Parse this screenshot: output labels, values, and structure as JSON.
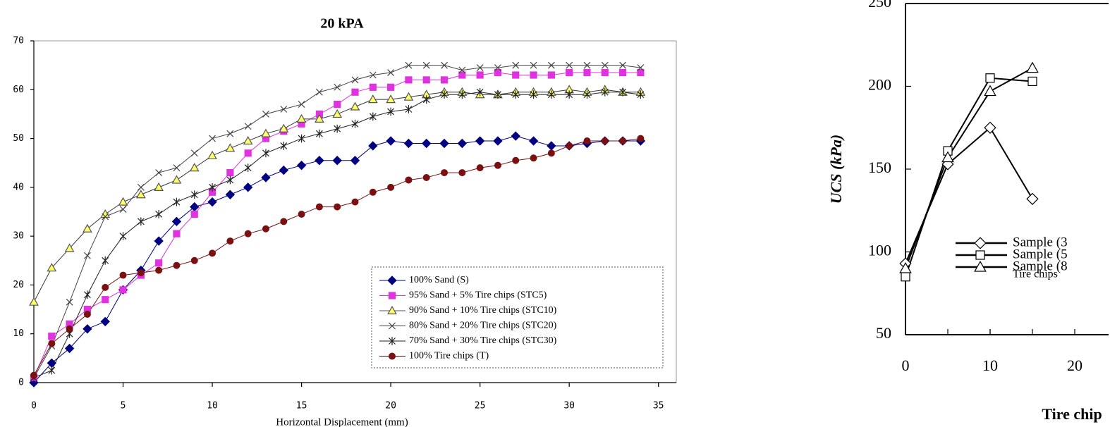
{
  "chart_data": [
    {
      "type": "line",
      "title": "20 kPA",
      "x_label": "Horizontal Displacement (mm)",
      "x": [
        0,
        1,
        2,
        3,
        4,
        5,
        6,
        7,
        8,
        9,
        10,
        11,
        12,
        13,
        14,
        15,
        16,
        17,
        18,
        19,
        20,
        21,
        22,
        23,
        24,
        25,
        26,
        27,
        28,
        29,
        30,
        31,
        32,
        33,
        34
      ],
      "xlim": [
        0,
        36
      ],
      "xticks": [
        0,
        5,
        10,
        15,
        20,
        25,
        30,
        35
      ],
      "ylim": [
        0,
        70
      ],
      "yticks": [
        0,
        10,
        20,
        30,
        40,
        50,
        60,
        70
      ],
      "legend": "lower-right",
      "series": [
        {
          "name": "100% Sand (S)",
          "color": "#000080",
          "marker": "diamond",
          "values": [
            0,
            4,
            7,
            11,
            12.5,
            19,
            23,
            29,
            33,
            36,
            37,
            38.5,
            40,
            42,
            43.5,
            44.5,
            45.5,
            45.5,
            45.5,
            48.5,
            49.5,
            49,
            49,
            49,
            49,
            49.5,
            49.5,
            50.5,
            49.5,
            48.5,
            48.5,
            49,
            49.5,
            49.5,
            49.5
          ]
        },
        {
          "name": "95% Sand + 5% Tire chips  (STC5)",
          "color": "#e033e0",
          "marker": "square",
          "values": [
            1,
            9.5,
            12,
            15,
            17,
            19,
            22,
            24.5,
            30.5,
            34.5,
            39,
            43,
            47,
            50,
            51.5,
            53,
            55,
            57,
            59.5,
            60.5,
            60.5,
            62,
            62,
            62,
            63,
            63,
            63.5,
            63,
            63,
            63,
            63.5,
            63.5,
            63.5,
            63.5,
            63.5
          ]
        },
        {
          "name": "90% Sand + 10% Tire chips  (STC10)",
          "color": "#ffff66",
          "marker": "triangle",
          "values": [
            16.5,
            23.5,
            27.5,
            31.5,
            34.5,
            37,
            38.5,
            40,
            41.5,
            44,
            46.5,
            48,
            49.5,
            51,
            52,
            54,
            54,
            55,
            56.5,
            58,
            58,
            58.5,
            59,
            59.5,
            59.5,
            59,
            59,
            59.5,
            59.5,
            59.5,
            60,
            59.5,
            60,
            59.5,
            59.5
          ]
        },
        {
          "name": "80% Sand + 20% Tire chips  (STC20)",
          "color": "#444444",
          "marker": "x",
          "values": [
            1,
            7.5,
            16.5,
            26,
            34,
            35.5,
            40,
            43,
            44,
            47,
            50,
            51,
            52.5,
            55,
            56,
            57,
            59.5,
            60.5,
            62,
            63,
            63.5,
            65,
            65,
            65,
            64,
            64.5,
            64.5,
            65,
            65,
            65,
            65,
            65,
            65,
            65,
            64.5
          ]
        },
        {
          "name": "70% Sand + 30% Tire chips  (STC30)",
          "color": "#222222",
          "marker": "star",
          "values": [
            1,
            2.5,
            10,
            18,
            25,
            30,
            33,
            34.5,
            37,
            38.5,
            40,
            41.5,
            44,
            47,
            48.5,
            50,
            51,
            52,
            53,
            54.5,
            55.5,
            56,
            58,
            59,
            59,
            59.5,
            59,
            59,
            59,
            59,
            59,
            59,
            59.5,
            59.5,
            59
          ]
        },
        {
          "name": "100% Tire chips  (T)",
          "color": "#7a1010",
          "marker": "circle",
          "values": [
            1.5,
            8,
            11,
            14,
            19.5,
            22,
            22.5,
            23,
            24,
            25,
            26.5,
            29,
            30.5,
            31.5,
            33,
            34.5,
            36,
            36,
            37,
            39,
            40,
            41.5,
            42,
            43,
            43,
            44,
            44.5,
            45.5,
            46,
            47,
            48.5,
            49.5,
            49.5,
            49.5,
            50
          ]
        }
      ]
    },
    {
      "type": "line",
      "y_label": "UCS (kPa)",
      "x_label": "Tire chip",
      "x": [
        0,
        5,
        10,
        15
      ],
      "xlim": [
        0,
        24
      ],
      "xticks": [
        0,
        10,
        20
      ],
      "ylim": [
        50,
        250
      ],
      "yticks": [
        50,
        100,
        150,
        200,
        250
      ],
      "legend_note": "Tire chips",
      "series": [
        {
          "name": "Sample (3",
          "color": "#000000",
          "marker": "diamond",
          "values": [
            93,
            153,
            175,
            132
          ]
        },
        {
          "name": "Sample (5",
          "color": "#000000",
          "marker": "square",
          "values": [
            85,
            161,
            205,
            203
          ]
        },
        {
          "name": "Sample (8",
          "color": "#000000",
          "marker": "triangle",
          "values": [
            90,
            157,
            197,
            211
          ]
        }
      ]
    }
  ]
}
